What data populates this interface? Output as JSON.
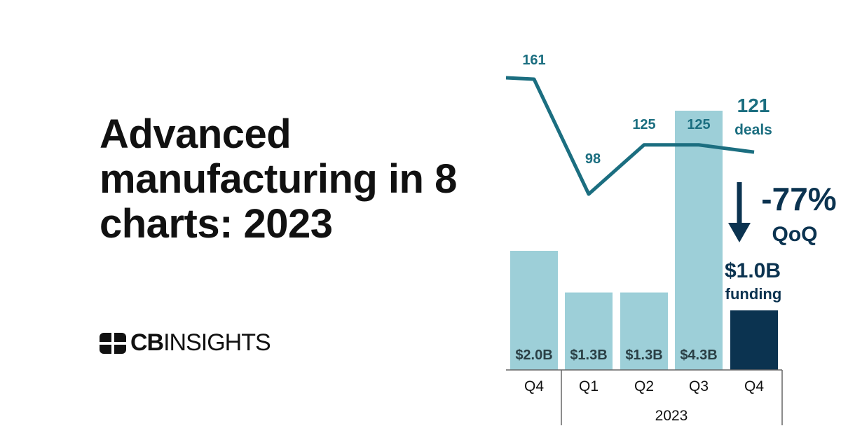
{
  "headline": "Advanced manufacturing in 8 charts: 2023",
  "logo": {
    "bold": "CB",
    "light": "INSIGHTS"
  },
  "colors": {
    "bar": "#9dcfd8",
    "bar_highlight": "#0b3350",
    "line": "#1b6e80",
    "annotation": "#0b3350"
  },
  "chart_data": {
    "type": "bar+line",
    "categories": [
      "Q4",
      "Q1",
      "Q2",
      "Q3",
      "Q4"
    ],
    "year_group_label": "2023",
    "series": [
      {
        "type": "bar",
        "values": [
          2.0,
          1.3,
          1.3,
          4.3,
          1.0
        ],
        "labels": [
          "$2.0B",
          "$1.3B",
          "$1.3B",
          "$4.3B",
          "$1.0B"
        ]
      },
      {
        "type": "line",
        "values": [
          161,
          98,
          125,
          125,
          121
        ],
        "labels": [
          "161",
          "98",
          "125",
          "125",
          "121"
        ]
      }
    ],
    "annotations": {
      "deals_label": "deals",
      "funding_label": "funding",
      "change": "-77%",
      "change_period": "QoQ"
    }
  }
}
